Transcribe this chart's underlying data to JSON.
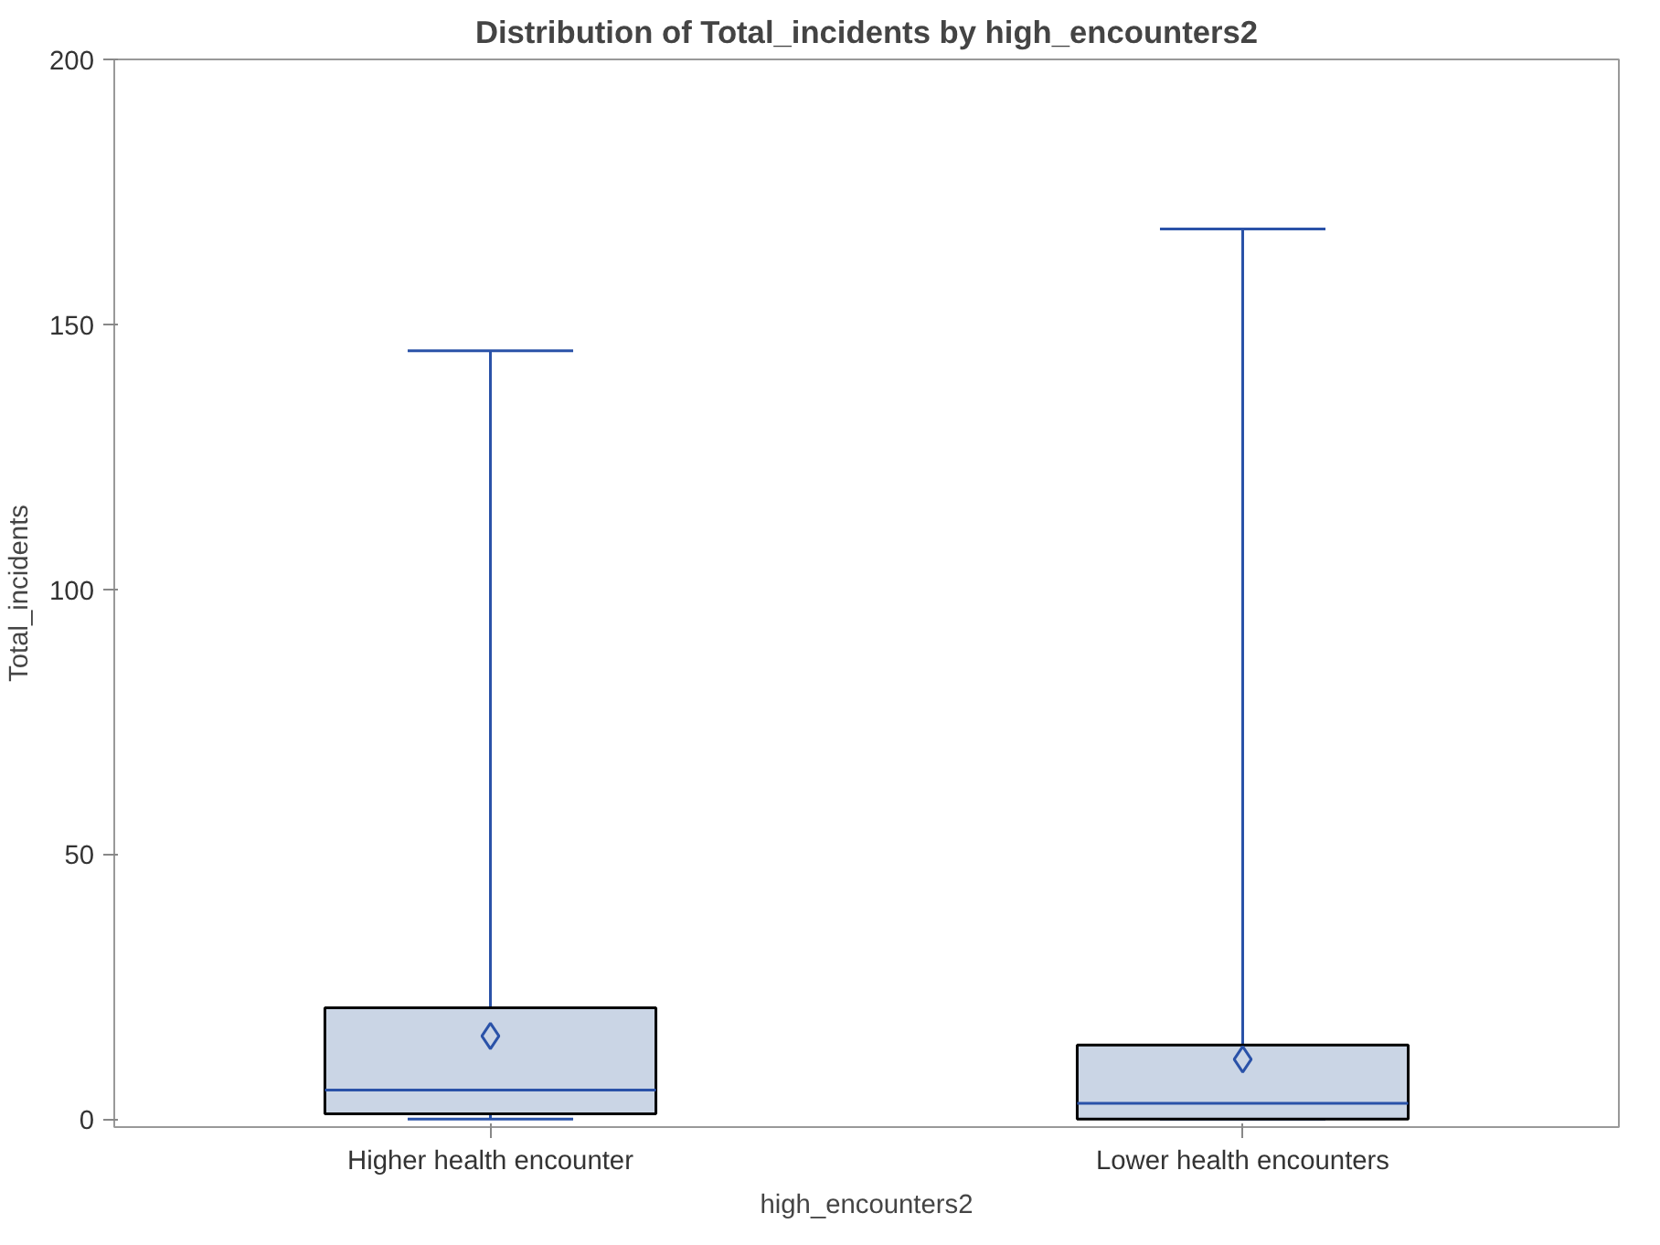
{
  "chart_data": {
    "type": "box",
    "title": "Distribution of Total_incidents by high_encounters2",
    "xlabel": "high_encounters2",
    "ylabel": "Total_incidents",
    "categories": [
      "Higher health encounter",
      "Lower health encounters"
    ],
    "series": [
      {
        "color": "#cad5e5",
        "boxes": [
          {
            "low": 0,
            "q1": 1,
            "median": 5.5,
            "q3": 21,
            "high": 145,
            "mean": 15.7
          },
          {
            "low": 0,
            "q1": 0,
            "median": 3,
            "q3": 14,
            "high": 168,
            "mean": 11.3
          }
        ]
      }
    ],
    "ylim": [
      -1.5,
      200
    ],
    "yticks": [
      0,
      50,
      100,
      150,
      200
    ],
    "grid": false,
    "marker": "diamond"
  }
}
